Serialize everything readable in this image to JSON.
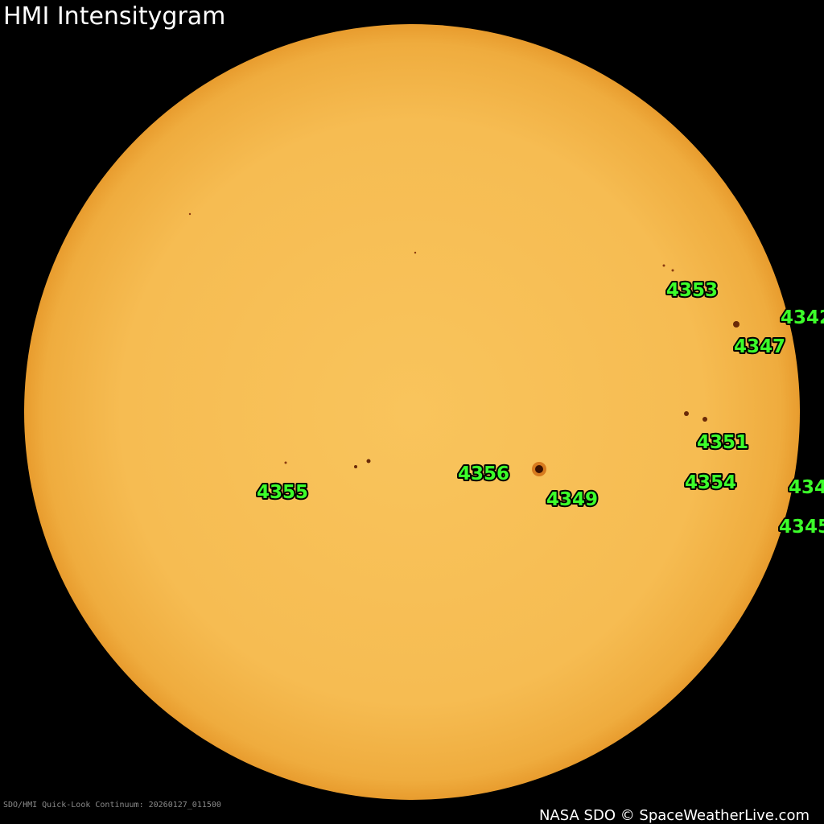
{
  "header": {
    "title": "HMI Intensitygram"
  },
  "regions": [
    {
      "label": "4353"
    },
    {
      "label": "4342"
    },
    {
      "label": "4347"
    },
    {
      "label": "4351"
    },
    {
      "label": "4354"
    },
    {
      "label": "434"
    },
    {
      "label": "4345"
    },
    {
      "label": "4356"
    },
    {
      "label": "4349"
    },
    {
      "label": "4355"
    }
  ],
  "footer": {
    "source": "SDO/HMI Quick-Look Continuum: 20260127_011500",
    "credit": "NASA SDO © SpaceWeatherLive.com"
  }
}
